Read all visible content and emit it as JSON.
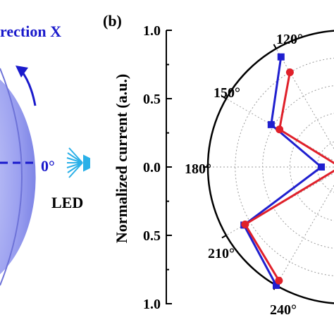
{
  "left_panel": {
    "direction_label": "rection X",
    "angle_label": "0°",
    "source_label": "LED"
  },
  "panel_label": "(b)",
  "chart_data": {
    "type": "polar-line",
    "radial_axis": {
      "label": "Normalized current (a.u.)",
      "range": [
        0,
        1.0
      ],
      "ticks_upper": [
        "1.0",
        "0.5",
        "0.0"
      ],
      "ticks_lower": [
        "0.5",
        "1.0"
      ]
    },
    "angular_ticks": [
      "120°",
      "150°",
      "180°",
      "210°",
      "240°"
    ],
    "series": [
      {
        "color": "#1f1fcf",
        "marker": "square",
        "points": [
          {
            "angle": 120,
            "r": 0.93
          },
          {
            "angle": 150,
            "r": 0.62
          },
          {
            "angle": 180,
            "r": 0.17
          },
          {
            "angle": 210,
            "r": 0.85
          },
          {
            "angle": 240,
            "r": 1.0
          }
        ]
      },
      {
        "color": "#e0202a",
        "marker": "circle",
        "points": [
          {
            "angle": 120,
            "r": 0.8
          },
          {
            "angle": 150,
            "r": 0.55
          },
          {
            "angle": 180,
            "r": 0.03
          },
          {
            "angle": 210,
            "r": 0.84
          },
          {
            "angle": 240,
            "r": 0.96
          }
        ]
      }
    ]
  },
  "colors": {
    "blue": "#1f1fcf",
    "red": "#e0202a",
    "led_cyan": "#2ab0e8",
    "sphere": "#8f95ee"
  }
}
